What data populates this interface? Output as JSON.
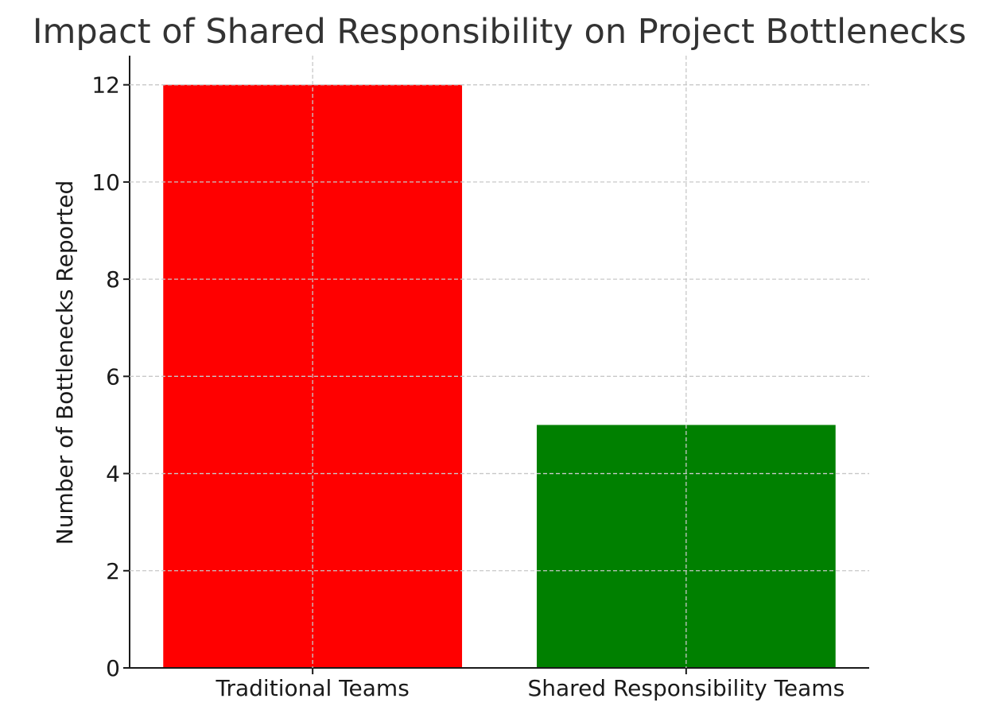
{
  "chart_data": {
    "type": "bar",
    "title": "Impact of Shared Responsibility on Project Bottlenecks",
    "xlabel": "",
    "ylabel": "Number of Bottlenecks Reported",
    "categories": [
      "Traditional Teams",
      "Shared Responsibility Teams"
    ],
    "values": [
      12,
      5
    ],
    "colors": [
      "#ff0000",
      "#008000"
    ],
    "ylim": [
      0,
      12.6
    ],
    "yticks": [
      0,
      2,
      4,
      6,
      8,
      10,
      12
    ],
    "grid": true
  }
}
